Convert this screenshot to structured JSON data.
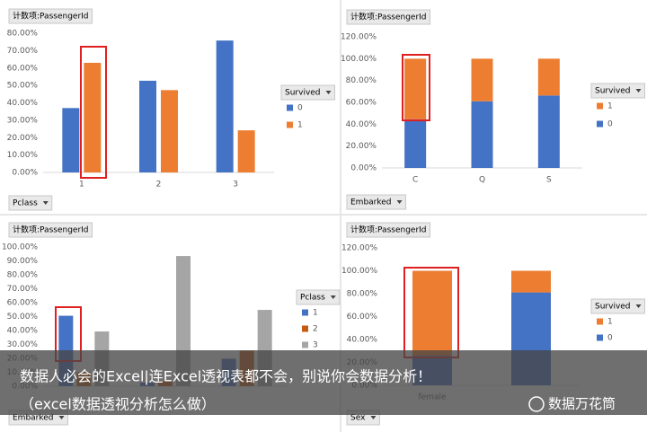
{
  "chart_data": [
    {
      "type": "bar",
      "field_button": "计数项:PassengerId",
      "filter_button": "Pclass",
      "legend_title": "Survived",
      "categories": [
        "1",
        "2",
        "3"
      ],
      "series": [
        {
          "name": "0",
          "color": "#4472c4",
          "values": [
            37,
            52.7,
            75.8
          ]
        },
        {
          "name": "1",
          "color": "#ed7d31",
          "values": [
            63,
            47.3,
            24.2
          ]
        }
      ],
      "ylim": [
        0,
        80
      ],
      "yticks": [
        {
          "value": 0,
          "label": "0.00%"
        },
        {
          "value": 10,
          "label": "10.00%"
        },
        {
          "value": 20,
          "label": "20.00%"
        },
        {
          "value": 30,
          "label": "30.00%"
        },
        {
          "value": 40,
          "label": "40.00%"
        },
        {
          "value": 50,
          "label": "50.00%"
        },
        {
          "value": 60,
          "label": "60.00%"
        },
        {
          "value": 70,
          "label": "70.00%"
        },
        {
          "value": 80,
          "label": "80.00%"
        }
      ],
      "stacked": false,
      "legend_reversed": false,
      "grid": false
    },
    {
      "type": "bar",
      "field_button": "计数项:PassengerId",
      "filter_button": "Embarked",
      "legend_title": "Survived",
      "categories": [
        "C",
        "Q",
        "S"
      ],
      "series": [
        {
          "name": "0",
          "color": "#4472c4",
          "values": [
            44.6,
            61,
            66.3
          ]
        },
        {
          "name": "1",
          "color": "#ed7d31",
          "values": [
            55.4,
            39,
            33.7
          ]
        }
      ],
      "ylim": [
        0,
        120
      ],
      "yticks": [
        {
          "value": 0,
          "label": "0.00%"
        },
        {
          "value": 20,
          "label": "20.00%"
        },
        {
          "value": 40,
          "label": "40.00%"
        },
        {
          "value": 60,
          "label": "60.00%"
        },
        {
          "value": 80,
          "label": "80.00%"
        },
        {
          "value": 100,
          "label": "100.00%"
        },
        {
          "value": 120,
          "label": "120.00%"
        }
      ],
      "stacked": true,
      "legend_reversed": true,
      "grid": false
    },
    {
      "type": "bar",
      "field_button": "计数项:PassengerId",
      "filter_button": "Embarked",
      "legend_title": "Pclass",
      "categories": [
        null,
        null,
        null
      ],
      "series": [
        {
          "name": "1",
          "color": "#4472c4",
          "values": [
            50.6,
            2.6,
            19.7
          ]
        },
        {
          "name": "2",
          "color": "#c55a11",
          "values": [
            10.1,
            3.9,
            25.5
          ]
        },
        {
          "name": "3",
          "color": "#a5a5a5",
          "values": [
            39.3,
            93.5,
            54.8
          ]
        }
      ],
      "ylim": [
        0,
        100
      ],
      "yticks": [
        {
          "value": 0,
          "label": "0.00%"
        },
        {
          "value": 10,
          "label": "10.00%"
        },
        {
          "value": 20,
          "label": "20.00%"
        },
        {
          "value": 30,
          "label": "30.00%"
        },
        {
          "value": 40,
          "label": "40.00%"
        },
        {
          "value": 50,
          "label": "50.00%"
        },
        {
          "value": 60,
          "label": "60.00%"
        },
        {
          "value": 70,
          "label": "70.00%"
        },
        {
          "value": 80,
          "label": "80.00%"
        },
        {
          "value": 90,
          "label": "90.00%"
        },
        {
          "value": 100,
          "label": "100.00%"
        }
      ],
      "stacked": false,
      "legend_reversed": false,
      "grid": false
    },
    {
      "type": "bar",
      "field_button": "计数项:PassengerId",
      "filter_button": "Sex",
      "legend_title": "Survived",
      "categories": [
        "female",
        null
      ],
      "series": [
        {
          "name": "0",
          "color": "#4472c4",
          "values": [
            25.8,
            81.1
          ]
        },
        {
          "name": "1",
          "color": "#ed7d31",
          "values": [
            74.2,
            18.9
          ]
        }
      ],
      "ylim": [
        0,
        120
      ],
      "yticks": [
        {
          "value": 0,
          "label": "0.00%"
        },
        {
          "value": 20,
          "label": "20.00%"
        },
        {
          "value": 40,
          "label": "40.00%"
        },
        {
          "value": 60,
          "label": "60.00%"
        },
        {
          "value": 80,
          "label": "80.00%"
        },
        {
          "value": 100,
          "label": "100.00%"
        },
        {
          "value": 120,
          "label": "120.00%"
        }
      ],
      "stacked": true,
      "legend_reversed": true,
      "grid": false
    }
  ],
  "banner": {
    "lines": [
      "数据人必会的Excel|连Excel透视表都不会，别说你会数据分析！",
      "（excel数据透视分析怎么做）"
    ]
  },
  "watermark": "数据万花筒"
}
